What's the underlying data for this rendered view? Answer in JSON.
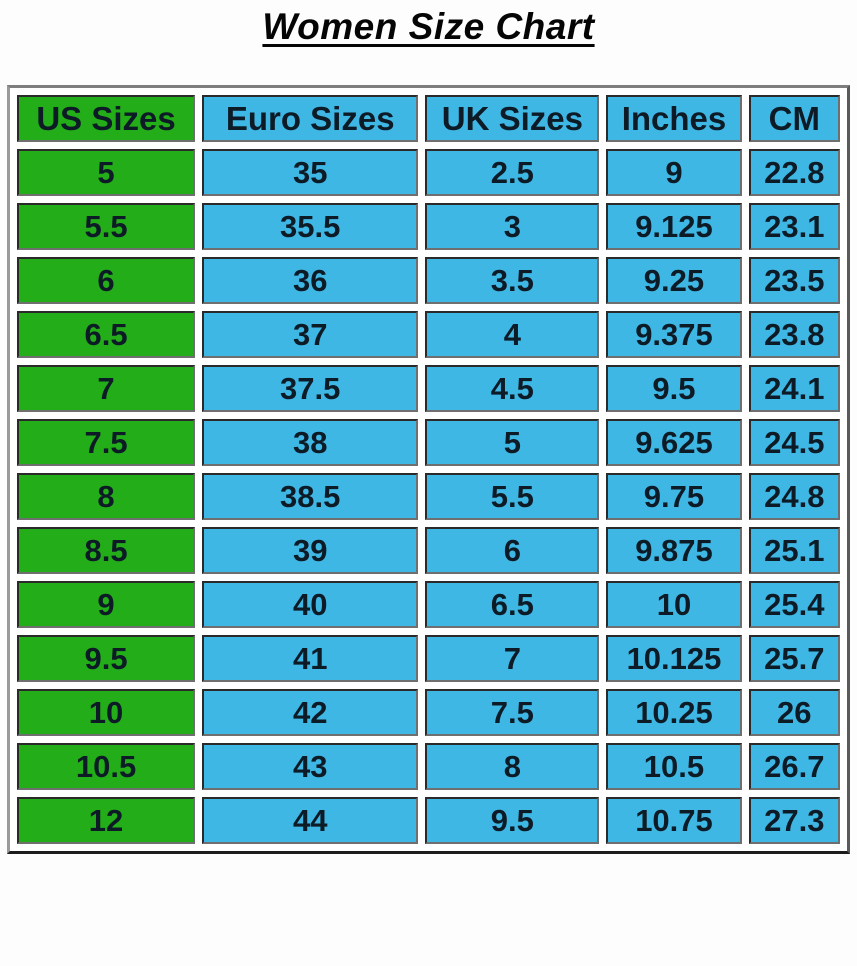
{
  "title": "Women Size Chart",
  "colors": {
    "us_sizes_column_bg": "#23ad18",
    "other_columns_bg": "#3fb7e5",
    "text": "#0d1b26",
    "cell_border": "#2a2a2a",
    "page_bg": "#fdfdfd"
  },
  "chart_data": {
    "type": "table",
    "title": "Women Size Chart",
    "columns": [
      "US Sizes",
      "Euro Sizes",
      "UK Sizes",
      "Inches",
      "CM"
    ],
    "column_widths_pct": [
      22.4,
      27.2,
      21.9,
      17.0,
      11.5
    ],
    "rows": [
      [
        "5",
        "35",
        "2.5",
        "9",
        "22.8"
      ],
      [
        "5.5",
        "35.5",
        "3",
        "9.125",
        "23.1"
      ],
      [
        "6",
        "36",
        "3.5",
        "9.25",
        "23.5"
      ],
      [
        "6.5",
        "37",
        "4",
        "9.375",
        "23.8"
      ],
      [
        "7",
        "37.5",
        "4.5",
        "9.5",
        "24.1"
      ],
      [
        "7.5",
        "38",
        "5",
        "9.625",
        "24.5"
      ],
      [
        "8",
        "38.5",
        "5.5",
        "9.75",
        "24.8"
      ],
      [
        "8.5",
        "39",
        "6",
        "9.875",
        "25.1"
      ],
      [
        "9",
        "40",
        "6.5",
        "10",
        "25.4"
      ],
      [
        "9.5",
        "41",
        "7",
        "10.125",
        "25.7"
      ],
      [
        "10",
        "42",
        "7.5",
        "10.25",
        "26"
      ],
      [
        "10.5",
        "43",
        "8",
        "10.5",
        "26.7"
      ],
      [
        "12",
        "44",
        "9.5",
        "10.75",
        "27.3"
      ]
    ]
  }
}
